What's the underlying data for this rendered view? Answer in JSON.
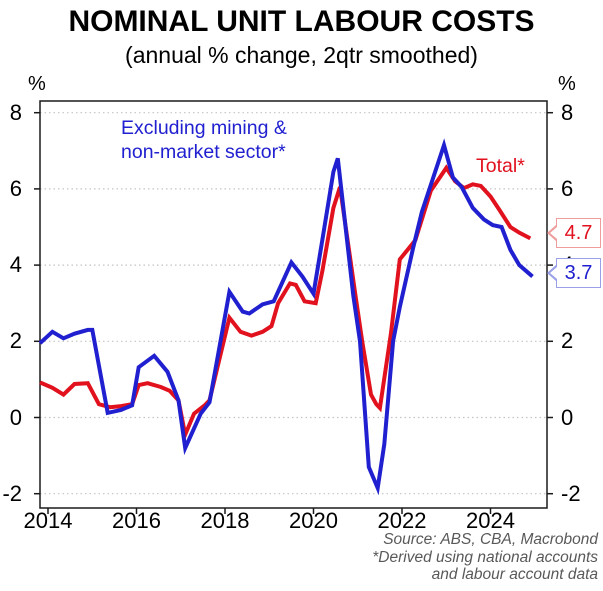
{
  "title": "NOMINAL UNIT LABOUR COSTS",
  "subtitle": "(annual % change, 2qtr smoothed)",
  "axis": {
    "unit_left": "%",
    "unit_right": "%",
    "y_ticks": [
      8,
      6,
      4,
      2,
      0,
      -2
    ],
    "x_ticks": [
      2014,
      2016,
      2018,
      2020,
      2022,
      2024
    ]
  },
  "annotations": {
    "excl_line1": "Excluding mining &",
    "excl_line2": "non-market sector*",
    "total_label": "Total*"
  },
  "callouts": {
    "total": {
      "value": "4.7",
      "text_color": "#e1111e",
      "border_color": "#ef9c9c"
    },
    "excl": {
      "value": "3.7",
      "text_color": "#2020d0",
      "border_color": "#9aa0e8"
    }
  },
  "source": {
    "line1": "Source: ABS, CBA, Macrobond",
    "line2": "*Derived using national accounts",
    "line3": "and labour account data"
  },
  "colors": {
    "total_line": "#e1111e",
    "excl_line": "#2020d0",
    "grid": "#c4c4c4",
    "frame": "#1a1a1a"
  },
  "chart_data": {
    "type": "line",
    "title": "NOMINAL UNIT LABOUR COSTS",
    "subtitle": "(annual % change, 2qtr smoothed)",
    "ylabel": "%",
    "ylim": [
      -2.4,
      8.3
    ],
    "xlim": [
      2013.8,
      2025.2
    ],
    "grid": true,
    "legend_position": "inline-annotations",
    "y_ticks": [
      8,
      6,
      4,
      2,
      0,
      -2
    ],
    "x_ticks": [
      2014,
      2016,
      2018,
      2020,
      2022,
      2024
    ],
    "series": [
      {
        "name": "Total*",
        "color": "#e1111e",
        "end_label": "4.7",
        "points": [
          [
            2013.82,
            0.92
          ],
          [
            2014.1,
            0.78
          ],
          [
            2014.35,
            0.6
          ],
          [
            2014.6,
            0.88
          ],
          [
            2014.9,
            0.9
          ],
          [
            2015.15,
            0.35
          ],
          [
            2015.4,
            0.27
          ],
          [
            2015.65,
            0.3
          ],
          [
            2015.9,
            0.35
          ],
          [
            2016.05,
            0.85
          ],
          [
            2016.25,
            0.9
          ],
          [
            2016.55,
            0.8
          ],
          [
            2016.75,
            0.7
          ],
          [
            2016.95,
            0.45
          ],
          [
            2017.1,
            -0.45
          ],
          [
            2017.3,
            0.1
          ],
          [
            2017.55,
            0.33
          ],
          [
            2017.65,
            0.45
          ],
          [
            2018.1,
            2.62
          ],
          [
            2018.35,
            2.25
          ],
          [
            2018.6,
            2.15
          ],
          [
            2018.85,
            2.25
          ],
          [
            2019.05,
            2.4
          ],
          [
            2019.2,
            3.0
          ],
          [
            2019.47,
            3.52
          ],
          [
            2019.6,
            3.48
          ],
          [
            2019.8,
            3.05
          ],
          [
            2020.05,
            3.0
          ],
          [
            2020.2,
            3.85
          ],
          [
            2020.45,
            5.5
          ],
          [
            2020.6,
            6.05
          ],
          [
            2020.95,
            3.2
          ],
          [
            2021.1,
            2.0
          ],
          [
            2021.3,
            0.6
          ],
          [
            2021.42,
            0.35
          ],
          [
            2021.5,
            0.25
          ],
          [
            2021.75,
            2.2
          ],
          [
            2021.95,
            4.15
          ],
          [
            2022.3,
            4.65
          ],
          [
            2022.65,
            5.95
          ],
          [
            2023.0,
            6.55
          ],
          [
            2023.2,
            6.2
          ],
          [
            2023.4,
            6.02
          ],
          [
            2023.6,
            6.12
          ],
          [
            2023.78,
            6.08
          ],
          [
            2024.0,
            5.8
          ],
          [
            2024.2,
            5.45
          ],
          [
            2024.45,
            5.0
          ],
          [
            2024.65,
            4.85
          ],
          [
            2024.9,
            4.7
          ]
        ]
      },
      {
        "name": "Excluding mining & non-market sector*",
        "color": "#2020d0",
        "end_label": "3.7",
        "points": [
          [
            2013.82,
            1.95
          ],
          [
            2014.1,
            2.25
          ],
          [
            2014.35,
            2.08
          ],
          [
            2014.6,
            2.2
          ],
          [
            2014.9,
            2.3
          ],
          [
            2015.0,
            2.3
          ],
          [
            2015.35,
            0.12
          ],
          [
            2015.65,
            0.2
          ],
          [
            2015.9,
            0.32
          ],
          [
            2016.05,
            1.32
          ],
          [
            2016.4,
            1.62
          ],
          [
            2016.7,
            1.2
          ],
          [
            2016.95,
            0.45
          ],
          [
            2017.1,
            -0.8
          ],
          [
            2017.45,
            0.1
          ],
          [
            2017.65,
            0.4
          ],
          [
            2018.1,
            3.3
          ],
          [
            2018.4,
            2.78
          ],
          [
            2018.55,
            2.73
          ],
          [
            2018.85,
            2.97
          ],
          [
            2019.1,
            3.05
          ],
          [
            2019.5,
            4.07
          ],
          [
            2019.75,
            3.7
          ],
          [
            2020.0,
            3.25
          ],
          [
            2020.2,
            4.67
          ],
          [
            2020.45,
            6.45
          ],
          [
            2020.55,
            6.8
          ],
          [
            2020.9,
            3.2
          ],
          [
            2021.05,
            2.0
          ],
          [
            2021.25,
            -1.3
          ],
          [
            2021.45,
            -1.85
          ],
          [
            2021.6,
            -0.7
          ],
          [
            2021.8,
            2.0
          ],
          [
            2021.95,
            2.9
          ],
          [
            2022.25,
            4.45
          ],
          [
            2022.45,
            5.4
          ],
          [
            2022.95,
            7.15
          ],
          [
            2023.15,
            6.3
          ],
          [
            2023.35,
            6.05
          ],
          [
            2023.6,
            5.5
          ],
          [
            2023.85,
            5.2
          ],
          [
            2024.05,
            5.05
          ],
          [
            2024.25,
            5.0
          ],
          [
            2024.45,
            4.4
          ],
          [
            2024.65,
            4.0
          ],
          [
            2024.85,
            3.8
          ],
          [
            2024.95,
            3.7
          ]
        ]
      }
    ]
  }
}
